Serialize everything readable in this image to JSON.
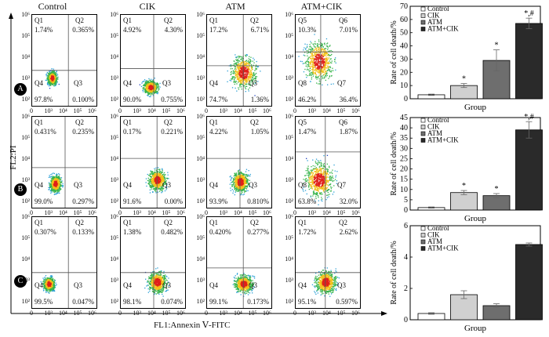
{
  "columns": [
    "Control",
    "CIK",
    "ATM",
    "ATM+CIK"
  ],
  "row_labels": [
    "A",
    "B",
    "C"
  ],
  "y_axis_title": "FL2:PI",
  "x_axis_title": "FL1:Annexin Ⅴ-FITC",
  "tick_labels_y": [
    "10⁶",
    "10⁵",
    "10⁴",
    "10³",
    "10²"
  ],
  "tick_labels_x": [
    "0",
    "10³",
    "10⁴",
    "10⁵",
    "10⁶"
  ],
  "flow_rows": [
    [
      {
        "q1": "Q1",
        "q1v": "1.74%",
        "q2": "Q2",
        "q2v": "0.365%",
        "q3": "Q3",
        "q3v": "0.100%",
        "q4": "Q4",
        "q4v": "97.8%"
      },
      {
        "q1": "Q1",
        "q1v": "4.92%",
        "q2": "Q2",
        "q2v": "4.30%",
        "q3": "Q3",
        "q3v": "0.755%",
        "q4": "Q4",
        "q4v": "90.0%"
      },
      {
        "q1": "Q1",
        "q1v": "17.2%",
        "q2": "Q2",
        "q2v": "6.71%",
        "q3": "Q3",
        "q3v": "1.36%",
        "q4": "Q4",
        "q4v": "74.7%"
      },
      {
        "q1": "Q5",
        "q1v": "10.3%",
        "q2": "Q6",
        "q2v": "7.01%",
        "q3": "Q7",
        "q3v": "36.4%",
        "q4": "Q8",
        "q4v": "46.2%"
      }
    ],
    [
      {
        "q1": "Q1",
        "q1v": "0.431%",
        "q2": "Q2",
        "q2v": "0.235%",
        "q3": "Q3",
        "q3v": "0.297%",
        "q4": "Q4",
        "q4v": "99.0%"
      },
      {
        "q1": "Q1",
        "q1v": "0.17%",
        "q2": "Q2",
        "q2v": "0.221%",
        "q3": "Q3",
        "q3v": "0.00%",
        "q4": "Q4",
        "q4v": "91.6%"
      },
      {
        "q1": "Q1",
        "q1v": "4.22%",
        "q2": "Q2",
        "q2v": "1.05%",
        "q3": "Q3",
        "q3v": "0.810%",
        "q4": "Q4",
        "q4v": "93.9%"
      },
      {
        "q1": "Q5",
        "q1v": "1.47%",
        "q2": "Q6",
        "q2v": "1.87%",
        "q3": "Q7",
        "q3v": "32.0%",
        "q4": "Q8",
        "q4v": "63.8%"
      }
    ],
    [
      {
        "q1": "Q1",
        "q1v": "0.307%",
        "q2": "Q2",
        "q2v": "0.133%",
        "q3": "Q3",
        "q3v": "0.047%",
        "q4": "Q4",
        "q4v": "99.5%"
      },
      {
        "q1": "Q1",
        "q1v": "1.38%",
        "q2": "Q2",
        "q2v": "0.482%",
        "q3": "Q3",
        "q3v": "0.074%",
        "q4": "Q4",
        "q4v": "98.1%"
      },
      {
        "q1": "Q1",
        "q1v": "0.420%",
        "q2": "Q2",
        "q2v": "0.277%",
        "q3": "Q3",
        "q3v": "0.173%",
        "q4": "Q4",
        "q4v": "99.1%"
      },
      {
        "q1": "Q1",
        "q1v": "1.72%",
        "q2": "Q2",
        "q2v": "2.62%",
        "q3": "Q3",
        "q3v": "0.597%",
        "q4": "Q4",
        "q4v": "95.1%"
      }
    ]
  ],
  "chart_data": [
    {
      "type": "bar",
      "categories": [
        "Control",
        "CIK",
        "ATM",
        "ATM+CIK"
      ],
      "values": [
        3,
        10,
        29,
        57
      ],
      "errors": [
        0.5,
        1.5,
        8,
        4
      ],
      "marks": [
        "",
        "*",
        "*",
        "*,#"
      ],
      "ylim": [
        0,
        70
      ],
      "yticks": [
        0,
        10,
        20,
        30,
        40,
        50,
        60,
        70
      ],
      "xlabel": "Group",
      "ylabel": "Rate of cell death/%",
      "legend": [
        "Control",
        "CIK",
        "ATM",
        "ATM+CIK"
      ],
      "colors": [
        "#ffffff",
        "#d0d0d0",
        "#6e6e6e",
        "#2a2a2a"
      ]
    },
    {
      "type": "bar",
      "categories": [
        "Control",
        "CIK",
        "ATM",
        "ATM+CIK"
      ],
      "values": [
        1.2,
        8.5,
        7,
        39
      ],
      "errors": [
        0.3,
        1,
        1,
        4
      ],
      "marks": [
        "",
        "*",
        "*",
        "*,#"
      ],
      "ylim": [
        0,
        45
      ],
      "yticks": [
        0,
        5,
        10,
        15,
        20,
        25,
        30,
        35,
        40,
        45
      ],
      "xlabel": "Group",
      "ylabel": "Rate of cell death/%",
      "legend": [
        "Control",
        "CIK",
        "ATM",
        "ATM+CIK"
      ],
      "colors": [
        "#ffffff",
        "#d0d0d0",
        "#6e6e6e",
        "#2a2a2a"
      ]
    },
    {
      "type": "bar",
      "categories": [
        "Control",
        "CIK",
        "ATM",
        "ATM+CIK"
      ],
      "values": [
        0.4,
        1.6,
        0.9,
        4.8
      ],
      "errors": [
        0.05,
        0.25,
        0.12,
        0.1
      ],
      "marks": [
        "",
        "",
        "",
        ""
      ],
      "ylim": [
        0,
        6
      ],
      "yticks": [
        0,
        2,
        4,
        6
      ],
      "xlabel": "Group",
      "ylabel": "Rate of cell death/%",
      "legend": [
        "Control",
        "CIK",
        "ATM",
        "ATM+CIK"
      ],
      "colors": [
        "#ffffff",
        "#d0d0d0",
        "#6e6e6e",
        "#2a2a2a"
      ]
    }
  ]
}
